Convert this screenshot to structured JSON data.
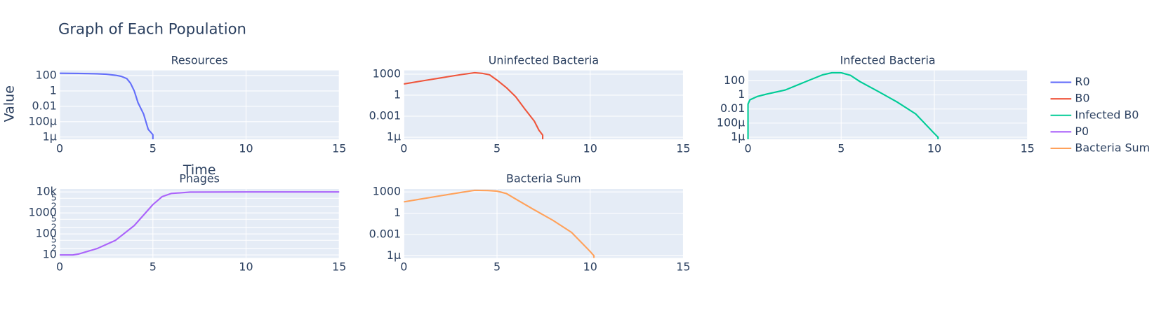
{
  "title": "Graph of Each Population",
  "x_label": "Time",
  "y_label": "Value",
  "legend": "right",
  "chart_data": [
    {
      "type": "line",
      "subtitle": "Resources",
      "log_y": true,
      "grid": true,
      "xlim": [
        0,
        15
      ],
      "xticks": [
        0,
        5,
        10,
        15
      ],
      "ylim": [
        5e-07,
        470
      ],
      "yticks": [
        100,
        1,
        0.01,
        {
          "value": 0.0001,
          "label": "100µ"
        },
        {
          "value": 1e-06,
          "label": "1µ"
        }
      ],
      "series": [
        {
          "name": "R0",
          "color": "#636efa",
          "x": [
            0,
            1,
            2,
            2.5,
            3,
            3.3,
            3.6,
            3.8,
            4,
            4.2,
            4.5,
            4.75,
            5,
            5
          ],
          "values": [
            200,
            190,
            170,
            150,
            110,
            80,
            40,
            10,
            1,
            0.03,
            0.001,
            1e-05,
            2e-06,
            5e-07
          ]
        }
      ]
    },
    {
      "type": "line",
      "subtitle": "Uninfected Bacteria",
      "log_y": true,
      "grid": true,
      "xlim": [
        0,
        15
      ],
      "xticks": [
        0,
        5,
        10,
        15
      ],
      "ylim": [
        5e-07,
        3400
      ],
      "yticks": [
        1000,
        1,
        0.001,
        {
          "value": 1e-06,
          "label": "1µ"
        }
      ],
      "series": [
        {
          "name": "B0",
          "color": "#EF553B",
          "x": [
            0,
            1,
            2,
            3,
            3.8,
            4.2,
            4.6,
            5,
            5.5,
            6,
            6.5,
            7,
            7.25,
            7.4,
            7.45,
            7.45
          ],
          "values": [
            40,
            110,
            300,
            800,
            1600,
            1300,
            800,
            140,
            12,
            0.6,
            0.01,
            0.0002,
            1e-05,
            3e-06,
            2e-06,
            5e-07
          ]
        }
      ]
    },
    {
      "type": "line",
      "subtitle": "Infected Bacteria",
      "log_y": true,
      "grid": true,
      "xlim": [
        0,
        15
      ],
      "xticks": [
        0,
        5,
        10,
        15
      ],
      "ylim": [
        5e-07,
        3000
      ],
      "yticks": [
        100,
        1,
        0.01,
        {
          "value": 0.0001,
          "label": "100µ"
        },
        {
          "value": 1e-06,
          "label": "1µ"
        }
      ],
      "series": [
        {
          "name": "Infected B0",
          "color": "#00cc96",
          "x": [
            0,
            0,
            0.1,
            0.5,
            1,
            2,
            3,
            4,
            4.5,
            5,
            5.5,
            6,
            7,
            8,
            9,
            10,
            10.2,
            10.2
          ],
          "values": [
            5e-07,
            0.05,
            0.2,
            0.6,
            1.3,
            5,
            60,
            700,
            1400,
            1400,
            600,
            80,
            3,
            0.1,
            0.002,
            3.4e-06,
            1e-06,
            5e-07
          ]
        }
      ]
    },
    {
      "type": "line",
      "subtitle": "Phages",
      "log_y": true,
      "grid": true,
      "xlim": [
        0,
        15
      ],
      "xticks": [
        0,
        5,
        10,
        15
      ],
      "ylim": [
        7.2,
        13800
      ],
      "yticks": [
        10,
        {
          "value": 20,
          "label": "2"
        },
        {
          "value": 50,
          "label": "5"
        },
        100,
        {
          "value": 200,
          "label": "2"
        },
        {
          "value": 500,
          "label": "5"
        },
        1000,
        {
          "value": 2000,
          "label": "2"
        },
        {
          "value": 5000,
          "label": "5"
        },
        {
          "value": 10000,
          "label": "10k"
        }
      ],
      "series": [
        {
          "name": "P0",
          "color": "#ab63fa",
          "x": [
            0,
            0.7,
            1,
            2,
            3,
            4,
            5,
            5.5,
            6,
            7,
            10,
            15
          ],
          "values": [
            10,
            10,
            11,
            20,
            50,
            250,
            2500,
            6000,
            8500,
            9800,
            10000,
            10000
          ]
        }
      ]
    },
    {
      "type": "line",
      "subtitle": "Bacteria Sum",
      "log_y": true,
      "grid": true,
      "xlim": [
        0,
        15
      ],
      "xticks": [
        0,
        5,
        10,
        15
      ],
      "ylim": [
        5e-07,
        2600
      ],
      "yticks": [
        1000,
        1,
        0.001,
        {
          "value": 1e-06,
          "label": "1µ"
        }
      ],
      "series": [
        {
          "name": "Bacteria Sum",
          "color": "#FFA15A",
          "x": [
            0,
            1,
            2,
            3,
            3.8,
            4.5,
            5,
            5.5,
            6,
            7,
            8,
            9,
            10,
            10.2,
            10.2
          ],
          "values": [
            40,
            110,
            300,
            800,
            1700,
            1600,
            1300,
            600,
            100,
            3,
            0.1,
            0.002,
            4e-06,
            1e-06,
            5e-07
          ]
        }
      ]
    }
  ]
}
